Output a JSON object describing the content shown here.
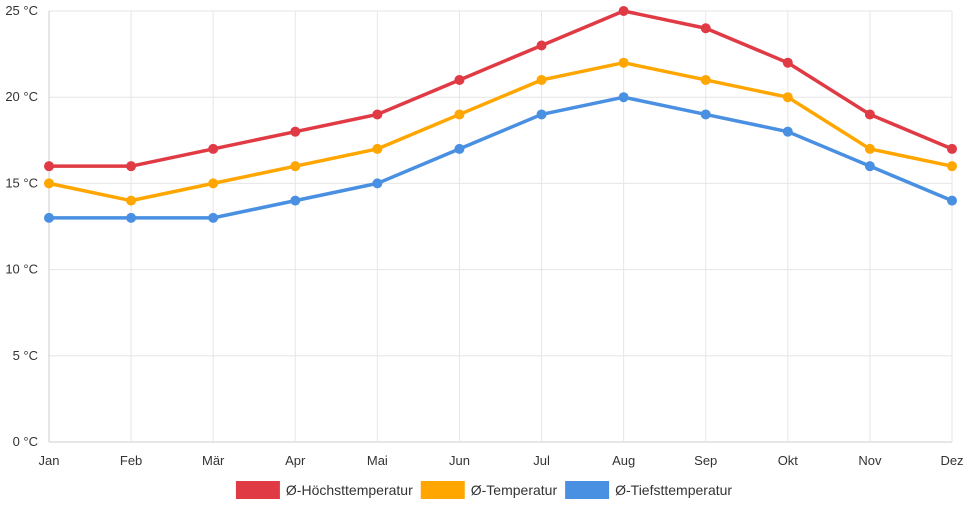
{
  "chart_data": {
    "type": "line",
    "title": "",
    "xlabel": "",
    "ylabel": "",
    "categories": [
      "Jan",
      "Feb",
      "Mär",
      "Apr",
      "Mai",
      "Jun",
      "Jul",
      "Aug",
      "Sep",
      "Okt",
      "Nov",
      "Dez"
    ],
    "y_ticks": [
      "0 °C",
      "5 °C",
      "10 °C",
      "15 °C",
      "20 °C",
      "25 °C"
    ],
    "ylim": [
      0,
      25
    ],
    "grid": true,
    "legend_position": "bottom",
    "series": [
      {
        "name": "Ø-Höchsttemperatur",
        "color": "#e03a45",
        "values": [
          16,
          16,
          17,
          18,
          19,
          21,
          23,
          25,
          24,
          22,
          19,
          17
        ]
      },
      {
        "name": "Ø-Temperatur",
        "color": "#ffa600",
        "values": [
          15,
          14,
          15,
          16,
          17,
          19,
          21,
          22,
          21,
          20,
          17,
          16
        ]
      },
      {
        "name": "Ø-Tiefsttemperatur",
        "color": "#4a90e2",
        "values": [
          13,
          13,
          13,
          14,
          15,
          17,
          19,
          20,
          19,
          18,
          16,
          14
        ]
      }
    ]
  }
}
